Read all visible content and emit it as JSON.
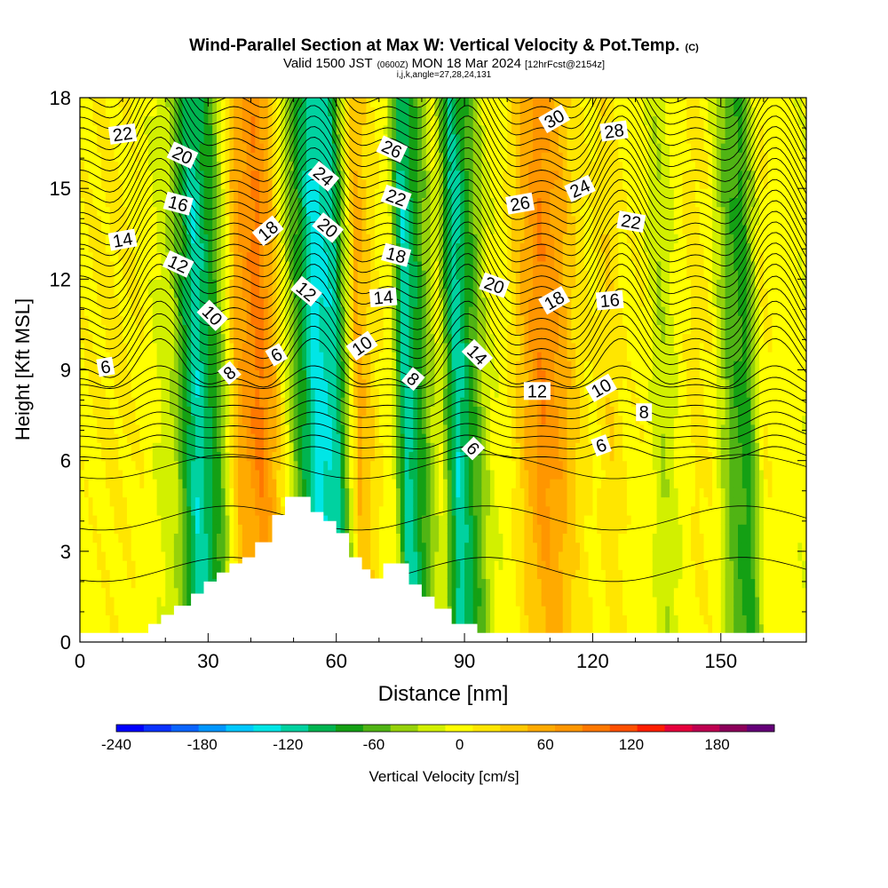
{
  "chart_data": {
    "type": "heatmap",
    "title": "Wind-Parallel Section at Max W: Vertical Velocity & Pot.Temp.",
    "title_tag": "(C)",
    "subtitle_prefix": "Valid 1500 JST",
    "subtitle_utc": "(0600Z)",
    "subtitle_date": "MON 18 Mar 2024",
    "subtitle_fcst": "[12hrFcst@2154z]",
    "subtitle2": "i,j,k,angle=27,28,24,131",
    "xlabel": "Distance [nm]",
    "ylabel": "Height [Kft MSL]",
    "xlim": [
      0,
      170
    ],
    "ylim": [
      0,
      18
    ],
    "x_ticks": [
      "0",
      "30",
      "60",
      "90",
      "120",
      "150"
    ],
    "y_ticks": [
      "0",
      "3",
      "6",
      "9",
      "12",
      "15",
      "18"
    ],
    "colorbar": {
      "label": "Vertical Velocity [cm/s]",
      "tick_labels": [
        "-240",
        "-180",
        "-120",
        "-60",
        "0",
        "60",
        "120",
        "180"
      ],
      "range": [
        -240,
        220
      ],
      "step": 20,
      "colors": [
        "#0000ff",
        "#0a32ff",
        "#0a64ff",
        "#0096ff",
        "#00c8ff",
        "#00e6e6",
        "#00d2a0",
        "#00b450",
        "#14a014",
        "#50b414",
        "#96d20a",
        "#d2f000",
        "#ffff00",
        "#ffe600",
        "#ffc800",
        "#ffaa00",
        "#ff9600",
        "#ff7800",
        "#ff5000",
        "#ff1e00",
        "#e6003c",
        "#be0050",
        "#8c005a",
        "#640078"
      ]
    },
    "w_profile": {
      "x": [
        0,
        8,
        15,
        22,
        27,
        32,
        37,
        42,
        45,
        50,
        55,
        60,
        65,
        70,
        73,
        76,
        80,
        84,
        88,
        92,
        96,
        100,
        104,
        108,
        112,
        116,
        120,
        124,
        128,
        132,
        136,
        140,
        144,
        148,
        152,
        156,
        160,
        164,
        170
      ],
      "w": [
        15,
        25,
        15,
        -20,
        -120,
        -60,
        70,
        110,
        70,
        -40,
        -130,
        -110,
        70,
        20,
        5,
        -120,
        -60,
        5,
        -120,
        -60,
        0,
        15,
        60,
        100,
        80,
        40,
        15,
        40,
        15,
        15,
        -20,
        5,
        30,
        15,
        -50,
        -70,
        20,
        10,
        5
      ]
    },
    "terrain": {
      "x": [
        0,
        16,
        16,
        19,
        19,
        22,
        22,
        26,
        26,
        29,
        29,
        32,
        32,
        35,
        35,
        38,
        38,
        41,
        41,
        45,
        45,
        48,
        48,
        54,
        54,
        57,
        57,
        60,
        60,
        63,
        63,
        66,
        66,
        68,
        68,
        71,
        71,
        77,
        77,
        80,
        80,
        83,
        83,
        87,
        87,
        93,
        93,
        170
      ],
      "y": [
        0.3,
        0.3,
        0.6,
        0.6,
        0.9,
        0.9,
        1.2,
        1.2,
        1.6,
        1.6,
        2.0,
        2.0,
        2.3,
        2.3,
        2.6,
        2.6,
        2.8,
        2.8,
        3.3,
        3.3,
        4.2,
        4.2,
        4.8,
        4.8,
        4.3,
        4.3,
        4.0,
        4.0,
        3.6,
        3.6,
        2.8,
        2.8,
        2.4,
        2.4,
        2.1,
        2.1,
        2.6,
        2.6,
        1.9,
        1.9,
        1.5,
        1.5,
        1.1,
        1.1,
        0.6,
        0.6,
        0.3,
        0.3
      ]
    },
    "theta_contours": {
      "levels_labeled": [
        6,
        8,
        10,
        12,
        14,
        16,
        18,
        20,
        22,
        24,
        26,
        28,
        30
      ],
      "labels": [
        {
          "text": "22",
          "x": 10,
          "y": 16.8,
          "angle": -8
        },
        {
          "text": "20",
          "x": 24,
          "y": 16.1,
          "angle": 25
        },
        {
          "text": "16",
          "x": 23,
          "y": 14.5,
          "angle": 15
        },
        {
          "text": "14",
          "x": 10,
          "y": 13.3,
          "angle": -10
        },
        {
          "text": "12",
          "x": 23,
          "y": 12.5,
          "angle": 25
        },
        {
          "text": "10",
          "x": 31,
          "y": 10.8,
          "angle": 45
        },
        {
          "text": "6",
          "x": 6,
          "y": 9.1,
          "angle": -10
        },
        {
          "text": "8",
          "x": 35,
          "y": 8.9,
          "angle": -40
        },
        {
          "text": "6",
          "x": 46,
          "y": 9.5,
          "angle": -30
        },
        {
          "text": "18",
          "x": 44,
          "y": 13.6,
          "angle": -40
        },
        {
          "text": "12",
          "x": 53,
          "y": 11.6,
          "angle": 40
        },
        {
          "text": "24",
          "x": 57,
          "y": 15.4,
          "angle": 40
        },
        {
          "text": "20",
          "x": 58,
          "y": 13.7,
          "angle": 40
        },
        {
          "text": "26",
          "x": 73,
          "y": 16.3,
          "angle": 25
        },
        {
          "text": "22",
          "x": 74,
          "y": 14.7,
          "angle": 20
        },
        {
          "text": "18",
          "x": 74,
          "y": 12.8,
          "angle": 15
        },
        {
          "text": "14",
          "x": 71,
          "y": 11.4,
          "angle": -5
        },
        {
          "text": "10",
          "x": 66,
          "y": 9.8,
          "angle": -35
        },
        {
          "text": "8",
          "x": 78,
          "y": 8.7,
          "angle": 40
        },
        {
          "text": "20",
          "x": 97,
          "y": 11.8,
          "angle": 20
        },
        {
          "text": "14",
          "x": 93,
          "y": 9.5,
          "angle": 45
        },
        {
          "text": "6",
          "x": 92,
          "y": 6.4,
          "angle": 45
        },
        {
          "text": "12",
          "x": 107,
          "y": 8.3,
          "angle": 0
        },
        {
          "text": "26",
          "x": 103,
          "y": 14.5,
          "angle": -10
        },
        {
          "text": "30",
          "x": 111,
          "y": 17.3,
          "angle": -30
        },
        {
          "text": "24",
          "x": 117,
          "y": 15.0,
          "angle": -25
        },
        {
          "text": "18",
          "x": 111,
          "y": 11.3,
          "angle": -30
        },
        {
          "text": "28",
          "x": 125,
          "y": 16.9,
          "angle": -8
        },
        {
          "text": "22",
          "x": 129,
          "y": 13.9,
          "angle": 10
        },
        {
          "text": "16",
          "x": 124,
          "y": 11.3,
          "angle": -5
        },
        {
          "text": "10",
          "x": 122,
          "y": 8.4,
          "angle": -30
        },
        {
          "text": "8",
          "x": 132,
          "y": 7.6,
          "angle": 0
        },
        {
          "text": "6",
          "x": 122,
          "y": 6.5,
          "angle": -20
        }
      ]
    }
  }
}
